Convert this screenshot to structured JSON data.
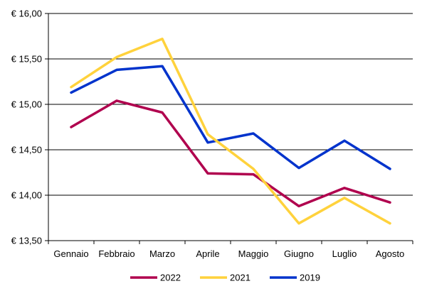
{
  "chart_data": {
    "type": "line",
    "categories": [
      "Gennaio",
      "Febbraio",
      "Marzo",
      "Aprile",
      "Maggio",
      "Giugno",
      "Luglio",
      "Agosto"
    ],
    "yticks": [
      "€ 13,50",
      "€ 14,00",
      "€ 14,50",
      "€ 15,00",
      "€ 15,50",
      "€ 16,00"
    ],
    "ylim": [
      13.5,
      16.0
    ],
    "grid": true,
    "legend_position": "bottom",
    "series": [
      {
        "name": "2022",
        "color": "#B0004E",
        "values": [
          14.75,
          15.04,
          14.91,
          14.24,
          14.23,
          13.88,
          14.08,
          13.92
        ]
      },
      {
        "name": "2021",
        "color": "#FFD23C",
        "values": [
          15.19,
          15.52,
          15.72,
          14.67,
          14.29,
          13.69,
          13.97,
          13.69
        ]
      },
      {
        "name": "2019",
        "color": "#0033CC",
        "values": [
          15.13,
          15.38,
          15.42,
          14.58,
          14.68,
          14.3,
          14.6,
          14.29
        ]
      }
    ]
  }
}
